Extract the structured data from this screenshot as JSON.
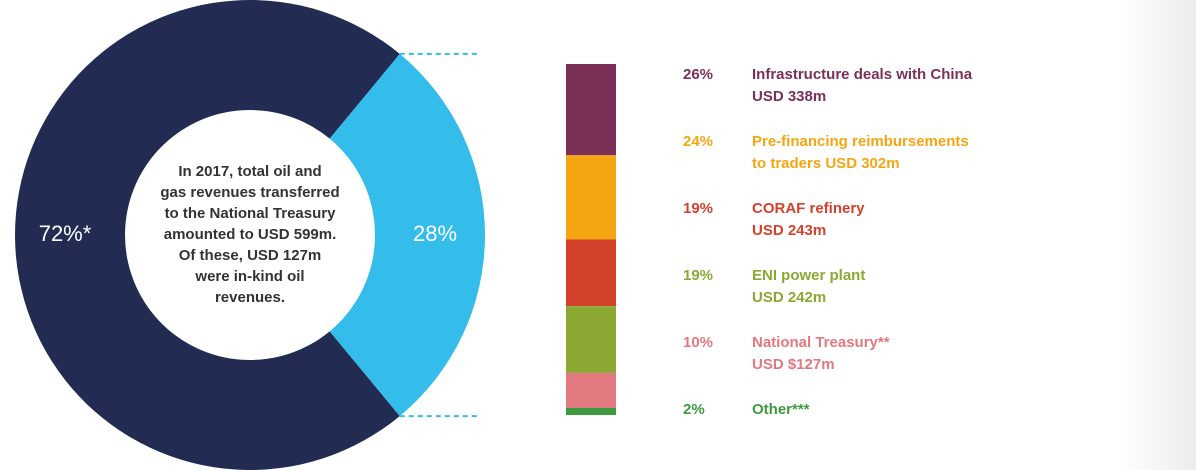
{
  "chart_data": [
    {
      "type": "donut",
      "values": [
        72,
        28
      ],
      "value_labels": [
        "72%*",
        "28%"
      ],
      "colors": [
        "#222c52",
        "#34bdea"
      ],
      "annotation": [
        "In 2017, total oil and",
        "gas revenues transferred",
        "to the National Treasury",
        "amounted to USD 599m.",
        "Of these, USD 127m",
        "were in-kind oil",
        "revenues."
      ]
    },
    {
      "type": "stacked-bar",
      "categories": [
        [
          "Infrastructure deals with China",
          "USD 338m"
        ],
        [
          "Pre-financing reimbursements",
          "to traders USD 302m"
        ],
        [
          "CORAF refinery",
          "USD 243m"
        ],
        [
          "ENI power plant",
          "USD 242m"
        ],
        [
          "National Treasury**",
          "USD $127m"
        ],
        [
          "Other***"
        ]
      ],
      "values": [
        26,
        24,
        19,
        19,
        10,
        2
      ],
      "value_labels": [
        "26%",
        "24%",
        "19%",
        "19%",
        "10%",
        "2%"
      ],
      "colors": [
        "#7b3058",
        "#f5a511",
        "#d4412b",
        "#8aa832",
        "#e27880",
        "#3e9a3e"
      ]
    }
  ]
}
